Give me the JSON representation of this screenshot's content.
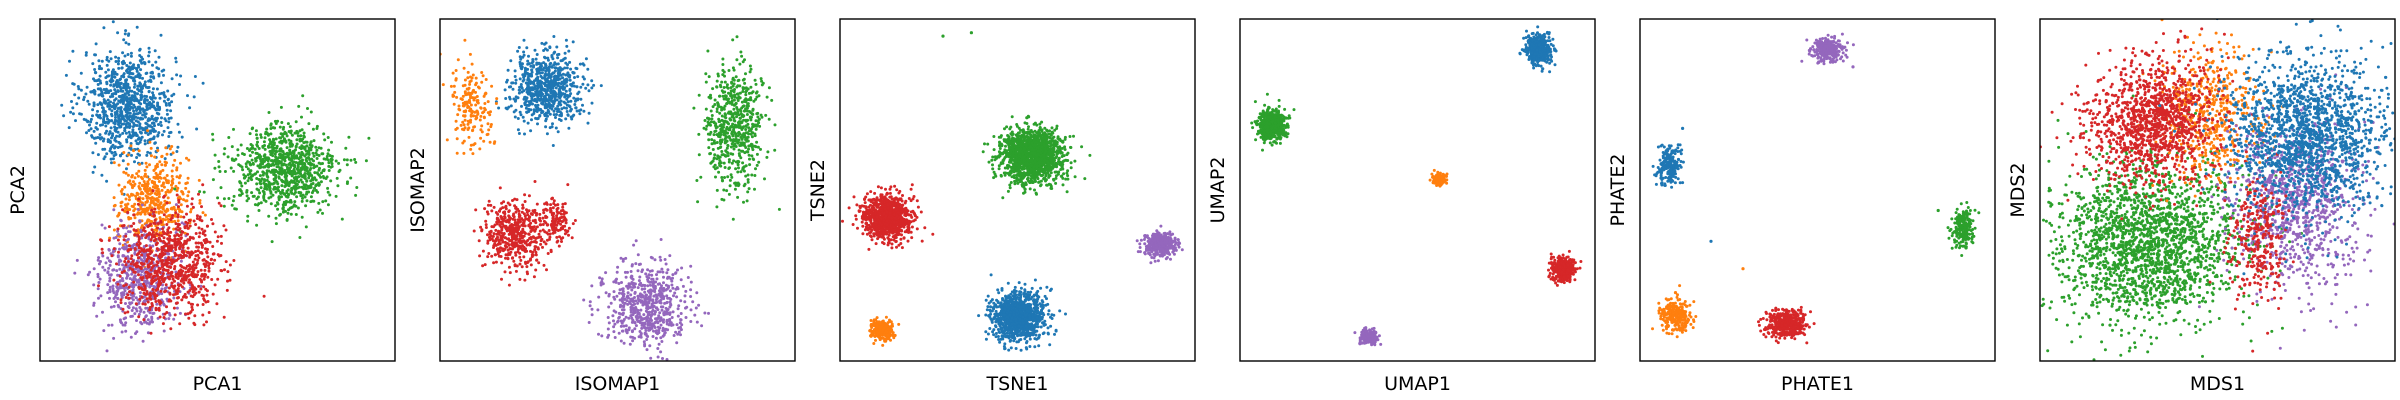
{
  "figure": {
    "background": "#ffffff",
    "palette": {
      "blue": "#1f77b4",
      "orange": "#ff7f0e",
      "green": "#2ca02c",
      "red": "#d62728",
      "purple": "#9467bd"
    }
  },
  "chart_data": [
    {
      "type": "scatter",
      "xlabel": "PCA1",
      "ylabel": "PCA2",
      "xlim": [
        0,
        100
      ],
      "ylim": [
        0,
        100
      ],
      "ticks": "none",
      "grid": false,
      "clusters": [
        {
          "color": "blue",
          "cx": 25,
          "cy": 75,
          "sx": 6.5,
          "sy": 8,
          "n": 900
        },
        {
          "color": "orange",
          "cx": 32,
          "cy": 47,
          "sx": 5,
          "sy": 6.5,
          "n": 450
        },
        {
          "color": "green",
          "cx": 69,
          "cy": 56,
          "sx": 7.5,
          "sy": 6.5,
          "n": 900
        },
        {
          "color": "purple",
          "cx": 28,
          "cy": 25,
          "sx": 5.5,
          "sy": 7.5,
          "n": 600
        },
        {
          "color": "red",
          "cx": 37,
          "cy": 29,
          "sx": 7,
          "sy": 7.5,
          "n": 800
        }
      ]
    },
    {
      "type": "scatter",
      "xlabel": "ISOMAP1",
      "ylabel": "ISOMAP2",
      "xlim": [
        0,
        100
      ],
      "ylim": [
        0,
        100
      ],
      "ticks": "none",
      "grid": false,
      "clusters": [
        {
          "color": "blue",
          "cx": 30,
          "cy": 80,
          "sx": 5,
          "sy": 5,
          "n": 700
        },
        {
          "color": "orange",
          "cx": 9,
          "cy": 75,
          "sx": 3,
          "sy": 6,
          "n": 180
        },
        {
          "color": "green",
          "cx": 83,
          "cy": 68,
          "sx": 4,
          "sy": 9,
          "n": 600
        },
        {
          "color": "red",
          "cx": 21,
          "cy": 37,
          "sx": 4.5,
          "sy": 5,
          "n": 500
        },
        {
          "color": "red",
          "cx": 33,
          "cy": 41,
          "sx": 2,
          "sy": 3,
          "n": 120
        },
        {
          "color": "purple",
          "cx": 58,
          "cy": 16,
          "sx": 6,
          "sy": 6,
          "n": 600
        }
      ]
    },
    {
      "type": "scatter",
      "xlabel": "TSNE1",
      "ylabel": "TSNE2",
      "xlim": [
        0,
        100
      ],
      "ylim": [
        0,
        100
      ],
      "ticks": "none",
      "grid": false,
      "clusters": [
        {
          "color": "green",
          "cx": 54,
          "cy": 60,
          "sx": 4.5,
          "sy": 3.8,
          "n": 1400
        },
        {
          "color": "red",
          "cx": 13,
          "cy": 42,
          "sx": 3.5,
          "sy": 3.2,
          "n": 900
        },
        {
          "color": "purple",
          "cx": 90,
          "cy": 34,
          "sx": 2.2,
          "sy": 1.8,
          "n": 400
        },
        {
          "color": "blue",
          "cx": 50,
          "cy": 13,
          "sx": 3.6,
          "sy": 3.5,
          "n": 1100
        },
        {
          "color": "orange",
          "cx": 12,
          "cy": 9,
          "sx": 1.6,
          "sy": 1.4,
          "n": 300
        }
      ],
      "outliers": [
        {
          "color": "green",
          "x": 29,
          "y": 95
        },
        {
          "color": "green",
          "x": 37,
          "y": 96
        }
      ]
    },
    {
      "type": "scatter",
      "xlabel": "UMAP1",
      "ylabel": "UMAP2",
      "xlim": [
        0,
        100
      ],
      "ylim": [
        0,
        100
      ],
      "ticks": "none",
      "grid": false,
      "clusters": [
        {
          "color": "blue",
          "cx": 84,
          "cy": 91,
          "sx": 1.8,
          "sy": 2.0,
          "n": 500
        },
        {
          "color": "green",
          "cx": 9,
          "cy": 69,
          "sx": 1.9,
          "sy": 2.3,
          "n": 550
        },
        {
          "color": "orange",
          "cx": 56,
          "cy": 53,
          "sx": 1.0,
          "sy": 0.8,
          "n": 150
        },
        {
          "color": "red",
          "cx": 91,
          "cy": 27,
          "sx": 1.6,
          "sy": 1.6,
          "n": 400
        },
        {
          "color": "purple",
          "cx": 36,
          "cy": 7,
          "sx": 1.2,
          "sy": 1.1,
          "n": 200
        }
      ]
    },
    {
      "type": "scatter",
      "xlabel": "PHATE1",
      "ylabel": "PHATE2",
      "xlim": [
        0,
        100
      ],
      "ylim": [
        0,
        100
      ],
      "ticks": "none",
      "grid": false,
      "clusters": [
        {
          "color": "purple",
          "cx": 53,
          "cy": 91,
          "sx": 2.2,
          "sy": 1.6,
          "n": 250
        },
        {
          "color": "blue",
          "cx": 8,
          "cy": 57,
          "sx": 1.6,
          "sy": 2.8,
          "n": 220
        },
        {
          "color": "green",
          "cx": 91,
          "cy": 39,
          "sx": 1.4,
          "sy": 2.6,
          "n": 220
        },
        {
          "color": "orange",
          "cx": 10,
          "cy": 13,
          "sx": 2.2,
          "sy": 2.4,
          "n": 250
        },
        {
          "color": "red",
          "cx": 41,
          "cy": 11,
          "sx": 2.8,
          "sy": 2.0,
          "n": 400
        }
      ],
      "outliers": [
        {
          "color": "orange",
          "x": 10,
          "y": 20
        },
        {
          "color": "blue",
          "x": 20,
          "y": 35
        },
        {
          "color": "orange",
          "x": 29,
          "y": 27
        },
        {
          "color": "green",
          "x": 84,
          "y": 44
        },
        {
          "color": "purple",
          "x": 60,
          "y": 86
        },
        {
          "color": "blue",
          "x": 12,
          "y": 68
        }
      ]
    },
    {
      "type": "scatter",
      "xlabel": "MDS1",
      "ylabel": "MDS2",
      "xlim": [
        0,
        100
      ],
      "ylim": [
        0,
        100
      ],
      "ticks": "none",
      "grid": false,
      "clusters": [
        {
          "color": "green",
          "cx": 30,
          "cy": 34,
          "sx": 13,
          "sy": 12,
          "n": 2000
        },
        {
          "color": "orange",
          "cx": 48,
          "cy": 73,
          "sx": 7,
          "sy": 10,
          "n": 500
        },
        {
          "color": "purple",
          "cx": 72,
          "cy": 45,
          "sx": 9,
          "sy": 12,
          "n": 900
        },
        {
          "color": "red",
          "cx": 32,
          "cy": 70,
          "sx": 9,
          "sy": 9,
          "n": 1200
        },
        {
          "color": "red",
          "cx": 62,
          "cy": 35,
          "sx": 4,
          "sy": 10,
          "n": 300
        },
        {
          "color": "blue",
          "cx": 76,
          "cy": 66,
          "sx": 11,
          "sy": 11,
          "n": 1600
        }
      ]
    }
  ]
}
